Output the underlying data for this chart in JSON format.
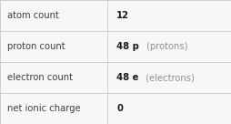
{
  "rows": [
    {
      "label": "atom count",
      "bold_part": "12",
      "normal_part": ""
    },
    {
      "label": "proton count",
      "bold_part": "48 p",
      "normal_part": " (protons)"
    },
    {
      "label": "electron count",
      "bold_part": "48 e",
      "normal_part": " (electrons)"
    },
    {
      "label": "net ionic charge",
      "bold_part": "0",
      "normal_part": ""
    }
  ],
  "col_split": 0.465,
  "bg_color": "#f7f7f7",
  "cell_bg": "#f7f7f7",
  "border_color": "#c8c8c8",
  "label_color": "#404040",
  "value_bold_color": "#1a1a1a",
  "value_normal_color": "#909090",
  "label_fontsize": 7.2,
  "value_fontsize": 7.2,
  "lw": 0.6
}
